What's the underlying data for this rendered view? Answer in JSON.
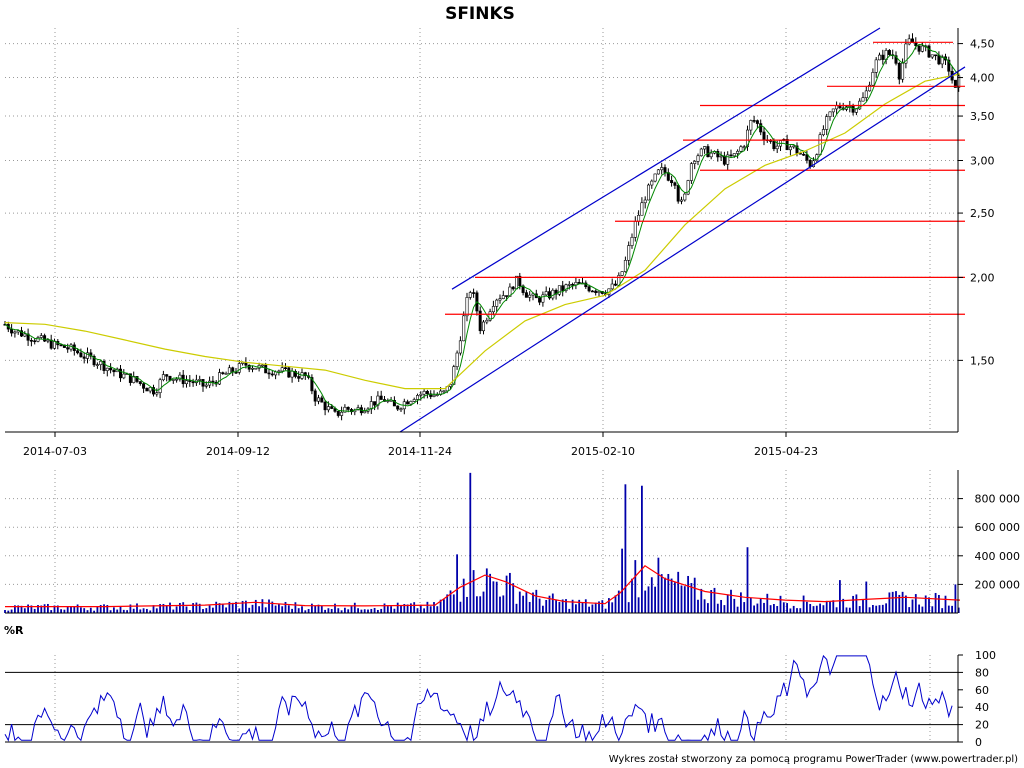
{
  "chart_data": [
    {
      "type": "candlestick",
      "title": "SFINKS",
      "x_tick_labels": [
        "2014-07-03",
        "2014-09-12",
        "2014-11-24",
        "2015-02-10",
        "2015-04-23"
      ],
      "y_tick_labels": [
        "4,50",
        "4,00",
        "3,50",
        "3,00",
        "2,50",
        "2,00",
        "1,50"
      ],
      "y_ticks": [
        4.5,
        4.0,
        3.5,
        3.0,
        2.5,
        2.0,
        1.5
      ],
      "y_scale": "log",
      "ylim": [
        1.17,
        4.75
      ],
      "series": [
        {
          "kind": "close",
          "points": [
            [
              0,
              1.7
            ],
            [
              10,
              1.66
            ],
            [
              20,
              1.64
            ],
            [
              30,
              1.62
            ],
            [
              40,
              1.6
            ],
            [
              50,
              1.58
            ],
            [
              60,
              1.57
            ],
            [
              70,
              1.55
            ],
            [
              80,
              1.52
            ],
            [
              90,
              1.5
            ],
            [
              100,
              1.47
            ],
            [
              110,
              1.44
            ],
            [
              120,
              1.42
            ],
            [
              130,
              1.4
            ],
            [
              140,
              1.37
            ],
            [
              150,
              1.35
            ],
            [
              160,
              1.43
            ],
            [
              170,
              1.41
            ],
            [
              180,
              1.4
            ],
            [
              190,
              1.39
            ],
            [
              200,
              1.37
            ],
            [
              210,
              1.4
            ],
            [
              220,
              1.43
            ],
            [
              230,
              1.45
            ],
            [
              240,
              1.48
            ],
            [
              250,
              1.47
            ],
            [
              260,
              1.45
            ],
            [
              270,
              1.45
            ],
            [
              280,
              1.44
            ],
            [
              290,
              1.43
            ],
            [
              300,
              1.42
            ],
            [
              305,
              1.38
            ],
            [
              310,
              1.32
            ],
            [
              320,
              1.28
            ],
            [
              330,
              1.24
            ],
            [
              340,
              1.27
            ],
            [
              350,
              1.26
            ],
            [
              360,
              1.28
            ],
            [
              370,
              1.3
            ],
            [
              380,
              1.31
            ],
            [
              390,
              1.27
            ],
            [
              400,
              1.3
            ],
            [
              410,
              1.33
            ],
            [
              420,
              1.34
            ],
            [
              430,
              1.33
            ],
            [
              440,
              1.34
            ],
            [
              445,
              1.38
            ],
            [
              450,
              1.48
            ],
            [
              455,
              1.62
            ],
            [
              460,
              1.78
            ],
            [
              465,
              1.92
            ],
            [
              470,
              1.85
            ],
            [
              475,
              1.68
            ],
            [
              480,
              1.72
            ],
            [
              485,
              1.8
            ],
            [
              490,
              1.86
            ],
            [
              500,
              1.89
            ],
            [
              505,
              1.91
            ],
            [
              510,
              1.98
            ],
            [
              515,
              1.96
            ],
            [
              520,
              1.9
            ],
            [
              530,
              1.85
            ],
            [
              540,
              1.87
            ],
            [
              550,
              1.9
            ],
            [
              560,
              1.93
            ],
            [
              570,
              1.95
            ],
            [
              580,
              1.94
            ],
            [
              590,
              1.92
            ],
            [
              600,
              1.91
            ],
            [
              610,
              1.94
            ],
            [
              615,
              2.0
            ],
            [
              620,
              2.1
            ],
            [
              625,
              2.25
            ],
            [
              630,
              2.4
            ],
            [
              640,
              2.65
            ],
            [
              650,
              2.82
            ],
            [
              655,
              2.9
            ],
            [
              660,
              2.88
            ],
            [
              665,
              2.82
            ],
            [
              670,
              2.8
            ],
            [
              675,
              2.55
            ],
            [
              680,
              2.65
            ],
            [
              685,
              2.95
            ],
            [
              690,
              3.05
            ],
            [
              700,
              3.1
            ],
            [
              710,
              3.05
            ],
            [
              720,
              3.0
            ],
            [
              730,
              3.05
            ],
            [
              740,
              3.2
            ],
            [
              745,
              3.42
            ],
            [
              750,
              3.45
            ],
            [
              760,
              3.25
            ],
            [
              770,
              3.15
            ],
            [
              780,
              3.18
            ],
            [
              790,
              3.12
            ],
            [
              800,
              3.02
            ],
            [
              805,
              2.96
            ],
            [
              810,
              3.05
            ],
            [
              820,
              3.4
            ],
            [
              830,
              3.6
            ],
            [
              840,
              3.64
            ],
            [
              850,
              3.6
            ],
            [
              860,
              3.74
            ],
            [
              865,
              3.98
            ],
            [
              870,
              4.2
            ],
            [
              880,
              4.35
            ],
            [
              890,
              4.32
            ],
            [
              895,
              4.0
            ],
            [
              900,
              4.4
            ],
            [
              905,
              4.55
            ],
            [
              910,
              4.48
            ],
            [
              920,
              4.4
            ],
            [
              930,
              4.3
            ],
            [
              940,
              4.2
            ],
            [
              945,
              4.1
            ],
            [
              950,
              3.8
            ],
            [
              955,
              4.02
            ]
          ]
        },
        {
          "kind": "moving-average",
          "color": "#cccc00",
          "points": [
            [
              0,
              1.71
            ],
            [
              40,
              1.7
            ],
            [
              80,
              1.66
            ],
            [
              120,
              1.61
            ],
            [
              160,
              1.56
            ],
            [
              200,
              1.52
            ],
            [
              240,
              1.49
            ],
            [
              280,
              1.47
            ],
            [
              320,
              1.45
            ],
            [
              360,
              1.4
            ],
            [
              400,
              1.36
            ],
            [
              440,
              1.36
            ],
            [
              480,
              1.55
            ],
            [
              520,
              1.72
            ],
            [
              560,
              1.82
            ],
            [
              600,
              1.88
            ],
            [
              640,
              2.05
            ],
            [
              680,
              2.4
            ],
            [
              720,
              2.72
            ],
            [
              760,
              2.95
            ],
            [
              800,
              3.1
            ],
            [
              840,
              3.3
            ],
            [
              880,
              3.65
            ],
            [
              920,
              3.95
            ],
            [
              955,
              4.05
            ]
          ]
        }
      ],
      "channel": {
        "color": "#0000cc",
        "lower": [
          [
            395,
            1.17
          ],
          [
            960,
            4.15
          ]
        ],
        "upper": [
          [
            447,
            1.92
          ],
          [
            875,
            4.75
          ]
        ]
      },
      "support_lines": {
        "color": "#ff0000",
        "levels": [
          {
            "value": 1.76,
            "x_from": 440,
            "x_to": 960
          },
          {
            "value": 2.0,
            "x_from": 470,
            "x_to": 960
          },
          {
            "value": 2.43,
            "x_from": 610,
            "x_to": 960
          },
          {
            "value": 2.9,
            "x_from": 695,
            "x_to": 960
          },
          {
            "value": 3.22,
            "x_from": 678,
            "x_to": 960
          },
          {
            "value": 3.63,
            "x_from": 695,
            "x_to": 960
          },
          {
            "value": 3.88,
            "x_from": 822,
            "x_to": 960
          },
          {
            "value": 4.52,
            "x_from": 868,
            "x_to": 948
          }
        ]
      }
    },
    {
      "type": "bar",
      "title": "",
      "y_tick_labels": [
        "800 000",
        "600 000",
        "400 000",
        "200 000"
      ],
      "y_ticks": [
        800000,
        600000,
        400000,
        200000
      ],
      "ylim": [
        0,
        1000000
      ],
      "bar_color": "#0000aa",
      "spikes": [
        [
          453,
          410000
        ],
        [
          458,
          240000
        ],
        [
          465,
          980000
        ],
        [
          470,
          300000
        ],
        [
          617,
          450000
        ],
        [
          620,
          900000
        ],
        [
          626,
          240000
        ],
        [
          631,
          370000
        ],
        [
          638,
          890000
        ],
        [
          648,
          250000
        ],
        [
          743,
          460000
        ],
        [
          834,
          230000
        ],
        [
          860,
          220000
        ],
        [
          950,
          200000
        ]
      ],
      "moving_average": {
        "color": "#ff0000",
        "points": [
          [
            0,
            45000
          ],
          [
            100,
            45000
          ],
          [
            200,
            55000
          ],
          [
            250,
            75000
          ],
          [
            300,
            52000
          ],
          [
            360,
            50000
          ],
          [
            430,
            55000
          ],
          [
            455,
            180000
          ],
          [
            480,
            265000
          ],
          [
            500,
            220000
          ],
          [
            530,
            120000
          ],
          [
            560,
            80000
          ],
          [
            600,
            65000
          ],
          [
            615,
            140000
          ],
          [
            640,
            330000
          ],
          [
            660,
            240000
          ],
          [
            700,
            150000
          ],
          [
            740,
            110000
          ],
          [
            780,
            90000
          ],
          [
            820,
            80000
          ],
          [
            860,
            95000
          ],
          [
            900,
            110000
          ],
          [
            955,
            90000
          ]
        ]
      }
    },
    {
      "type": "line",
      "title": "%R",
      "y_tick_labels": [
        "100",
        "80",
        "60",
        "40",
        "20",
        "0"
      ],
      "y_ticks": [
        100,
        80,
        60,
        40,
        20,
        0
      ],
      "ylim": [
        0,
        100
      ],
      "reference_lines": [
        80,
        20
      ],
      "line_color": "#0000cc"
    }
  ],
  "footer": "Wykres został stworzony za pomocą programu PowerTrader (www.powertrader.pl)"
}
